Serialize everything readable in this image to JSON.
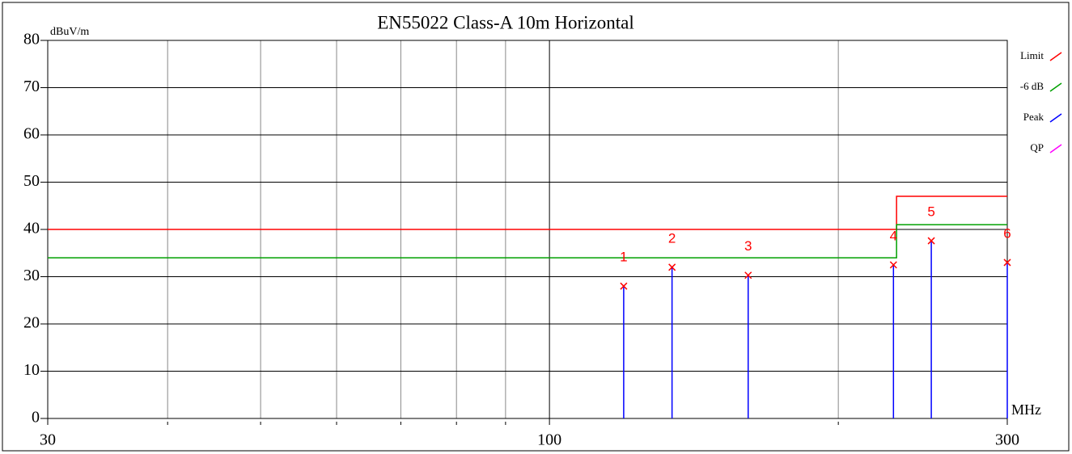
{
  "chart_data": {
    "type": "emc",
    "title": "EN55022 Class-A 10m  Horizontal",
    "y_label": "dBuV/m",
    "x_label": "MHz",
    "log_x": true,
    "xlim": [
      30,
      300
    ],
    "xticks": [
      30,
      100,
      300
    ],
    "x_minor_grid": [
      40,
      50,
      60,
      70,
      80,
      90,
      200
    ],
    "ylim": [
      0,
      80
    ],
    "yticks": [
      0,
      10,
      20,
      30,
      40,
      50,
      60,
      70,
      80
    ],
    "series": [
      {
        "name": "Limit",
        "color": "#ff0000",
        "x": [
          30,
          230,
          230,
          300
        ],
        "values": [
          40,
          40,
          47,
          47
        ]
      },
      {
        "name": "-6 dB",
        "color": "#00a000",
        "x": [
          30,
          230,
          230,
          300
        ],
        "values": [
          34,
          34,
          41,
          41
        ]
      },
      {
        "name": "Peak",
        "color": "#0000ff",
        "x": [
          119.5,
          134.2,
          161.1,
          228.3,
          250,
          300
        ],
        "values": [
          28.0,
          32.0,
          30.3,
          32.5,
          37.6,
          33.0
        ],
        "markers": [
          "1",
          "2",
          "3",
          "4",
          "5",
          "6"
        ]
      },
      {
        "name": "QP",
        "color": "#ff00ff"
      }
    ]
  }
}
